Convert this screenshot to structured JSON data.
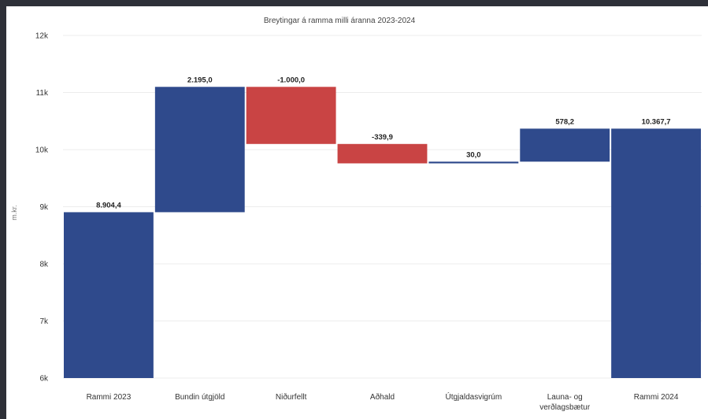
{
  "chart_data": {
    "type": "waterfall",
    "title": "Breytingar á ramma milli áranna 2023-2024",
    "ylabel": "m.kr.",
    "ylim": [
      6000,
      12000
    ],
    "yticks": [
      {
        "value": 6000,
        "label": "6k"
      },
      {
        "value": 7000,
        "label": "7k"
      },
      {
        "value": 8000,
        "label": "8k"
      },
      {
        "value": 9000,
        "label": "9k"
      },
      {
        "value": 10000,
        "label": "10k"
      },
      {
        "value": 11000,
        "label": "11k"
      },
      {
        "value": 12000,
        "label": "12k"
      }
    ],
    "grid": true,
    "bars": [
      {
        "category": [
          "Rammi 2023"
        ],
        "value": 8904.4,
        "kind": "total",
        "label": "8.904,4"
      },
      {
        "category": [
          "Bundin útgjöld"
        ],
        "value": 2195.0,
        "kind": "delta",
        "label": "2.195,0"
      },
      {
        "category": [
          "Niðurfellt"
        ],
        "value": -1000.0,
        "kind": "delta",
        "label": "-1.000,0"
      },
      {
        "category": [
          "Aðhald"
        ],
        "value": -339.9,
        "kind": "delta",
        "label": "-339,9"
      },
      {
        "category": [
          "Útgjaldasvigrúm"
        ],
        "value": 30.0,
        "kind": "delta",
        "label": "30,0"
      },
      {
        "category": [
          "Launa- og",
          "verðlagsbætur"
        ],
        "value": 578.2,
        "kind": "delta",
        "label": "578,2"
      },
      {
        "category": [
          "Rammi 2024"
        ],
        "value": 10367.7,
        "kind": "total",
        "label": "10.367,7"
      }
    ],
    "colors": {
      "increase": "#2f4a8c",
      "decrease": "#c94444",
      "total": "#2f4a8c"
    }
  }
}
